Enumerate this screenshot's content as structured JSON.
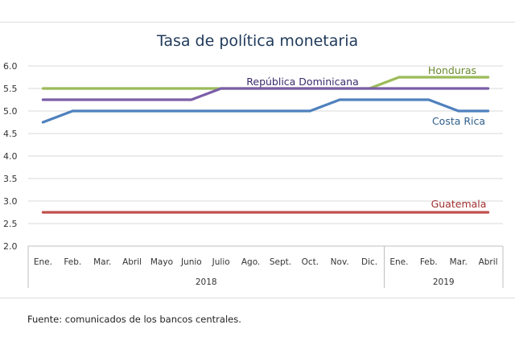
{
  "chart_data": {
    "type": "line",
    "title": "Tasa de política monetaria",
    "categories": [
      "Ene.",
      "Feb.",
      "Mar.",
      "Abril",
      "Mayo",
      "Junio",
      "Julio",
      "Ago.",
      "Sept.",
      "Oct.",
      "Nov.",
      "Dic.",
      "Ene.",
      "Feb.",
      "Mar.",
      "Abril"
    ],
    "year_groups": [
      {
        "label": "2018",
        "span": 12
      },
      {
        "label": "2019",
        "span": 4
      }
    ],
    "ylim": [
      2.0,
      6.0
    ],
    "yticks": [
      "2.0",
      "2.5",
      "3.0",
      "3.5",
      "4.0",
      "4.5",
      "5.0",
      "5.5",
      "6.0"
    ],
    "grid": true,
    "series": [
      {
        "name": "Honduras",
        "color": "#9bbb59",
        "values": [
          5.5,
          5.5,
          5.5,
          5.5,
          5.5,
          5.5,
          5.5,
          5.5,
          5.5,
          5.5,
          5.5,
          5.5,
          5.75,
          5.75,
          5.75,
          5.75
        ]
      },
      {
        "name": "República Dominicana",
        "color": "#7b5ea7",
        "values": [
          5.25,
          5.25,
          5.25,
          5.25,
          5.25,
          5.25,
          5.5,
          5.5,
          5.5,
          5.5,
          5.5,
          5.5,
          5.5,
          5.5,
          5.5,
          5.5
        ]
      },
      {
        "name": "Costa Rica",
        "color": "#4f81bd",
        "values": [
          4.75,
          5.0,
          5.0,
          5.0,
          5.0,
          5.0,
          5.0,
          5.0,
          5.0,
          5.0,
          5.25,
          5.25,
          5.25,
          5.25,
          5.0,
          5.0
        ]
      },
      {
        "name": "Guatemala",
        "color": "#c0504d",
        "values": [
          2.75,
          2.75,
          2.75,
          2.75,
          2.75,
          2.75,
          2.75,
          2.75,
          2.75,
          2.75,
          2.75,
          2.75,
          2.75,
          2.75,
          2.75,
          2.75
        ]
      }
    ]
  },
  "source": "Fuente: comunicados de los bancos centrales."
}
